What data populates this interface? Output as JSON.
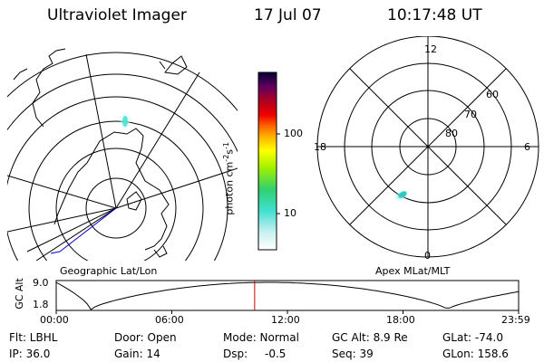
{
  "header": {
    "instrument": "Ultraviolet Imager",
    "date": "17 Jul 07",
    "time": "10:17:48 UT"
  },
  "geo_panel": {
    "label": "Geographic Lat/Lon"
  },
  "apex_panel": {
    "label": "Apex MLat/MLT",
    "mlt_labels": [
      "12",
      "18",
      "6",
      "0"
    ],
    "lat_labels": [
      "60",
      "70",
      "80"
    ]
  },
  "colorbar": {
    "unit_label": "photon cm",
    "unit_exp1": "-2",
    "unit_s": "s",
    "unit_exp2": "-1",
    "ticks": [
      "100",
      "10"
    ]
  },
  "timeline": {
    "ylabel": "GC Alt",
    "ytick_top": "9.0",
    "ytick_bottom": "1.8",
    "xticks": [
      "00:00",
      "06:00",
      "12:00",
      "18:00",
      "23:59"
    ],
    "current_marker_hours": 10.3
  },
  "status": {
    "flt": "Flt: LBHL",
    "door": "Door: Open",
    "mode": "Mode: Normal",
    "gc_alt": "GC Alt: 8.9 Re",
    "glat": "GLat: -74.0",
    "ip": "IP: 36.0",
    "gain": "Gain: 14",
    "dsp_label": "Dsp:",
    "dsp_value": "-0.5",
    "seq": "Seq: 39",
    "glon": "GLon: 158.6"
  },
  "colors": {
    "marker": "#cc0000",
    "trace_line": "#0000cc",
    "aurora": "#40e0d0"
  }
}
